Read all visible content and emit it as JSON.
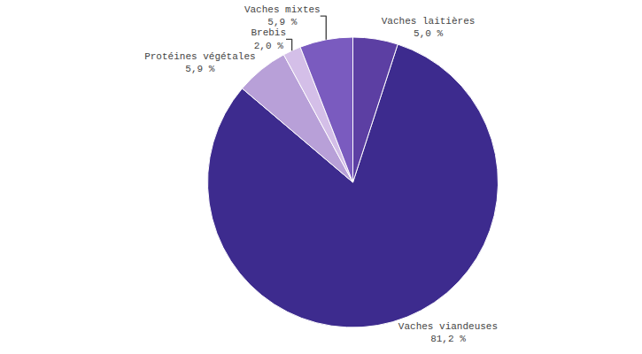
{
  "chart_data": {
    "type": "pie",
    "categories": [
      "Vaches viandeuses",
      "Protéines végétales",
      "Brebis",
      "Vaches mixtes",
      "Vaches laitières"
    ],
    "values": [
      81.2,
      5.9,
      2.0,
      5.9,
      5.0
    ],
    "value_labels": [
      "81,2 %",
      "5,9 %",
      "2,0 %",
      "5,9 %",
      "5,0 %"
    ],
    "colors": [
      "#3d2b8e",
      "#b8a0d8",
      "#d4bfe8",
      "#7a5bbf",
      "#5c3fa3"
    ],
    "data_labels": true
  }
}
